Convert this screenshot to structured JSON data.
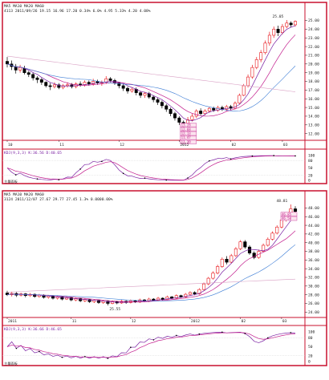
{
  "chart_data": [
    {
      "type": "candlestick",
      "stock_name": "",
      "ma_legend": "MA5 MA10 MA20 MA60",
      "info_line": "4113 2011/09/26 19.15 16.96 17.20 0.34% 6.0% 4.95 5.33% 4.20 4.08%",
      "x_ticks": [
        "10",
        "11",
        "12",
        "2012",
        "02",
        "03"
      ],
      "y_ticks": [
        "25.00",
        "24.00",
        "23.00",
        "22.00",
        "21.00",
        "20.00",
        "19.00",
        "18.00",
        "17.00",
        "16.00",
        "15.00",
        "14.00",
        "13.00",
        "12.00"
      ],
      "ylim": [
        11.6,
        25.6
      ],
      "high_label": "25.05",
      "low_label": "12.29",
      "price_box_labels": [
        "13.28",
        "12.68",
        "12.13",
        "11.47",
        "11.30"
      ],
      "candles": [
        {
          "o": 20.3,
          "c": 20.0,
          "h": 20.8,
          "l": 19.6
        },
        {
          "o": 20.0,
          "c": 19.7,
          "h": 20.4,
          "l": 19.3
        },
        {
          "o": 19.7,
          "c": 19.3,
          "h": 20.0,
          "l": 18.9
        },
        {
          "o": 19.3,
          "c": 19.6,
          "h": 19.9,
          "l": 19.0
        },
        {
          "o": 19.5,
          "c": 19.0,
          "h": 19.8,
          "l": 18.8
        },
        {
          "o": 19.0,
          "c": 18.8,
          "h": 19.2,
          "l": 18.5
        },
        {
          "o": 18.8,
          "c": 18.4,
          "h": 19.0,
          "l": 18.1
        },
        {
          "o": 18.4,
          "c": 18.2,
          "h": 18.6,
          "l": 17.8
        },
        {
          "o": 18.2,
          "c": 17.9,
          "h": 18.4,
          "l": 17.6
        },
        {
          "o": 17.9,
          "c": 17.5,
          "h": 18.0,
          "l": 17.3
        },
        {
          "o": 17.5,
          "c": 17.4,
          "h": 17.8,
          "l": 17.0
        },
        {
          "o": 17.4,
          "c": 17.6,
          "h": 17.9,
          "l": 17.2
        },
        {
          "o": 17.6,
          "c": 17.3,
          "h": 17.8,
          "l": 17.1
        },
        {
          "o": 17.3,
          "c": 17.5,
          "h": 17.7,
          "l": 17.1
        },
        {
          "o": 17.5,
          "c": 17.6,
          "h": 17.9,
          "l": 17.3
        },
        {
          "o": 17.6,
          "c": 17.4,
          "h": 17.8,
          "l": 17.2
        },
        {
          "o": 17.4,
          "c": 17.7,
          "h": 17.9,
          "l": 17.2
        },
        {
          "o": 17.7,
          "c": 17.6,
          "h": 18.0,
          "l": 17.4
        },
        {
          "o": 17.6,
          "c": 17.9,
          "h": 18.1,
          "l": 17.4
        },
        {
          "o": 17.9,
          "c": 17.7,
          "h": 18.1,
          "l": 17.5
        },
        {
          "o": 17.7,
          "c": 18.0,
          "h": 18.3,
          "l": 17.5
        },
        {
          "o": 18.0,
          "c": 17.8,
          "h": 18.2,
          "l": 17.6
        },
        {
          "o": 17.8,
          "c": 17.9,
          "h": 18.1,
          "l": 17.5
        },
        {
          "o": 17.9,
          "c": 18.3,
          "h": 18.6,
          "l": 17.7
        },
        {
          "o": 18.3,
          "c": 18.1,
          "h": 18.5,
          "l": 17.9
        },
        {
          "o": 18.1,
          "c": 17.8,
          "h": 18.3,
          "l": 17.6
        },
        {
          "o": 17.8,
          "c": 17.5,
          "h": 17.9,
          "l": 17.2
        },
        {
          "o": 17.5,
          "c": 17.2,
          "h": 17.7,
          "l": 16.9
        },
        {
          "o": 17.2,
          "c": 16.9,
          "h": 17.4,
          "l": 16.6
        },
        {
          "o": 16.9,
          "c": 17.1,
          "h": 17.3,
          "l": 16.7
        },
        {
          "o": 17.1,
          "c": 16.7,
          "h": 17.3,
          "l": 16.4
        },
        {
          "o": 16.7,
          "c": 16.4,
          "h": 16.9,
          "l": 16.1
        },
        {
          "o": 16.4,
          "c": 16.6,
          "h": 16.8,
          "l": 16.1
        },
        {
          "o": 16.6,
          "c": 16.2,
          "h": 16.8,
          "l": 16.0
        },
        {
          "o": 16.2,
          "c": 15.9,
          "h": 16.4,
          "l": 15.6
        },
        {
          "o": 15.9,
          "c": 15.6,
          "h": 16.1,
          "l": 15.3
        },
        {
          "o": 15.6,
          "c": 15.2,
          "h": 15.8,
          "l": 14.9
        },
        {
          "o": 15.2,
          "c": 14.8,
          "h": 15.4,
          "l": 14.5
        },
        {
          "o": 14.8,
          "c": 14.3,
          "h": 15.0,
          "l": 14.0
        },
        {
          "o": 14.3,
          "c": 13.8,
          "h": 14.5,
          "l": 13.5
        },
        {
          "o": 13.8,
          "c": 13.3,
          "h": 14.0,
          "l": 13.0
        },
        {
          "o": 13.3,
          "c": 12.7,
          "h": 13.5,
          "l": 12.29
        },
        {
          "o": 12.8,
          "c": 13.6,
          "h": 13.9,
          "l": 12.6
        },
        {
          "o": 13.6,
          "c": 14.0,
          "h": 14.3,
          "l": 13.4
        },
        {
          "o": 14.0,
          "c": 14.6,
          "h": 14.8,
          "l": 13.8
        },
        {
          "o": 14.6,
          "c": 14.3,
          "h": 14.9,
          "l": 14.1
        },
        {
          "o": 14.3,
          "c": 14.6,
          "h": 14.8,
          "l": 14.1
        },
        {
          "o": 14.6,
          "c": 14.9,
          "h": 15.1,
          "l": 14.4
        },
        {
          "o": 14.9,
          "c": 14.7,
          "h": 15.1,
          "l": 14.5
        },
        {
          "o": 14.7,
          "c": 15.0,
          "h": 15.2,
          "l": 14.5
        },
        {
          "o": 15.0,
          "c": 14.8,
          "h": 15.2,
          "l": 14.6
        },
        {
          "o": 14.8,
          "c": 15.1,
          "h": 15.3,
          "l": 14.6
        },
        {
          "o": 15.1,
          "c": 14.9,
          "h": 15.3,
          "l": 14.7
        },
        {
          "o": 14.9,
          "c": 15.5,
          "h": 15.7,
          "l": 14.8
        },
        {
          "o": 15.5,
          "c": 16.4,
          "h": 16.6,
          "l": 15.4
        },
        {
          "o": 16.4,
          "c": 17.5,
          "h": 17.7,
          "l": 16.3
        },
        {
          "o": 17.5,
          "c": 18.5,
          "h": 18.8,
          "l": 17.3
        },
        {
          "o": 18.5,
          "c": 19.6,
          "h": 19.9,
          "l": 18.3
        },
        {
          "o": 19.6,
          "c": 20.5,
          "h": 20.8,
          "l": 19.4
        },
        {
          "o": 20.5,
          "c": 21.3,
          "h": 21.6,
          "l": 20.2
        },
        {
          "o": 21.3,
          "c": 22.4,
          "h": 22.7,
          "l": 21.1
        },
        {
          "o": 22.4,
          "c": 23.3,
          "h": 23.7,
          "l": 22.1
        },
        {
          "o": 23.3,
          "c": 24.0,
          "h": 24.3,
          "l": 23.0
        },
        {
          "o": 24.0,
          "c": 23.6,
          "h": 24.4,
          "l": 23.2
        },
        {
          "o": 23.6,
          "c": 24.3,
          "h": 24.6,
          "l": 23.4
        },
        {
          "o": 24.3,
          "c": 24.7,
          "h": 25.05,
          "l": 24.1
        },
        {
          "o": 24.7,
          "c": 24.5,
          "h": 24.9,
          "l": 24.2
        },
        {
          "o": 24.5,
          "c": 24.9,
          "h": 25.0,
          "l": 24.3
        }
      ],
      "ma_slow_start": 20.9,
      "ma_slow_end": 16.8,
      "indicator_label": "KDJ(9,3,3) K:36.56 D:40.65",
      "indicator_ticks": [
        "100",
        "80",
        "50",
        "20",
        "0"
      ],
      "indicator_bottom_label": "主量面板"
    },
    {
      "type": "candlestick",
      "stock_name": "",
      "ma_legend": "MA5 MA10 MA20 MA60",
      "info_line": "3124 2011/12/07 27.67 29.77 27.45 1.3% 0.0000.00%",
      "x_ticks": [
        "2011",
        "11",
        "12",
        "2012",
        "02",
        "03"
      ],
      "y_ticks": [
        "48.00",
        "46.00",
        "44.00",
        "42.00",
        "40.00",
        "38.00",
        "36.00",
        "34.00",
        "32.00",
        "30.00",
        "28.00",
        "26.00",
        "24.00"
      ],
      "ylim": [
        23.5,
        49.0
      ],
      "high_label": "48.81",
      "low_label": "25.55",
      "price_box_labels": [
        "46.85",
        "46.50"
      ],
      "candles": [
        {
          "o": 28.4,
          "c": 28.0,
          "h": 28.9,
          "l": 27.7
        },
        {
          "o": 28.0,
          "c": 28.3,
          "h": 28.7,
          "l": 27.6
        },
        {
          "o": 28.3,
          "c": 27.9,
          "h": 28.6,
          "l": 27.5
        },
        {
          "o": 27.9,
          "c": 28.2,
          "h": 28.5,
          "l": 27.6
        },
        {
          "o": 28.2,
          "c": 27.8,
          "h": 28.4,
          "l": 27.4
        },
        {
          "o": 27.8,
          "c": 28.1,
          "h": 28.4,
          "l": 27.5
        },
        {
          "o": 28.1,
          "c": 27.6,
          "h": 28.3,
          "l": 27.3
        },
        {
          "o": 27.6,
          "c": 27.9,
          "h": 28.2,
          "l": 27.3
        },
        {
          "o": 27.9,
          "c": 27.4,
          "h": 28.1,
          "l": 27.1
        },
        {
          "o": 27.4,
          "c": 27.7,
          "h": 27.9,
          "l": 27.1
        },
        {
          "o": 27.7,
          "c": 27.2,
          "h": 27.9,
          "l": 26.9
        },
        {
          "o": 27.2,
          "c": 27.5,
          "h": 27.8,
          "l": 26.9
        },
        {
          "o": 27.5,
          "c": 27.0,
          "h": 27.7,
          "l": 26.7
        },
        {
          "o": 27.0,
          "c": 27.3,
          "h": 27.6,
          "l": 26.8
        },
        {
          "o": 27.3,
          "c": 26.8,
          "h": 27.5,
          "l": 26.5
        },
        {
          "o": 26.8,
          "c": 27.1,
          "h": 27.4,
          "l": 26.5
        },
        {
          "o": 27.1,
          "c": 26.6,
          "h": 27.3,
          "l": 26.3
        },
        {
          "o": 26.6,
          "c": 26.9,
          "h": 27.1,
          "l": 26.3
        },
        {
          "o": 26.9,
          "c": 26.4,
          "h": 27.1,
          "l": 26.1
        },
        {
          "o": 26.4,
          "c": 26.7,
          "h": 26.9,
          "l": 26.1
        },
        {
          "o": 26.7,
          "c": 26.2,
          "h": 26.9,
          "l": 25.9
        },
        {
          "o": 26.2,
          "c": 26.5,
          "h": 26.8,
          "l": 25.9
        },
        {
          "o": 26.5,
          "c": 26.0,
          "h": 26.7,
          "l": 25.55
        },
        {
          "o": 26.0,
          "c": 26.4,
          "h": 26.7,
          "l": 25.8
        },
        {
          "o": 26.4,
          "c": 26.1,
          "h": 26.6,
          "l": 25.8
        },
        {
          "o": 26.1,
          "c": 26.5,
          "h": 26.8,
          "l": 25.9
        },
        {
          "o": 26.5,
          "c": 26.2,
          "h": 26.7,
          "l": 25.9
        },
        {
          "o": 26.2,
          "c": 26.6,
          "h": 26.9,
          "l": 26.0
        },
        {
          "o": 26.6,
          "c": 26.3,
          "h": 26.8,
          "l": 26.1
        },
        {
          "o": 26.3,
          "c": 26.8,
          "h": 27.1,
          "l": 26.1
        },
        {
          "o": 26.8,
          "c": 26.5,
          "h": 27.0,
          "l": 26.3
        },
        {
          "o": 26.5,
          "c": 27.0,
          "h": 27.3,
          "l": 26.3
        },
        {
          "o": 27.0,
          "c": 26.7,
          "h": 27.2,
          "l": 26.5
        },
        {
          "o": 26.7,
          "c": 27.2,
          "h": 27.5,
          "l": 26.5
        },
        {
          "o": 27.2,
          "c": 26.9,
          "h": 27.4,
          "l": 26.7
        },
        {
          "o": 26.9,
          "c": 27.5,
          "h": 27.8,
          "l": 26.7
        },
        {
          "o": 27.5,
          "c": 27.2,
          "h": 27.7,
          "l": 27.0
        },
        {
          "o": 27.2,
          "c": 27.8,
          "h": 28.1,
          "l": 27.0
        },
        {
          "o": 27.8,
          "c": 27.5,
          "h": 28.0,
          "l": 27.3
        },
        {
          "o": 27.5,
          "c": 28.1,
          "h": 28.4,
          "l": 27.3
        },
        {
          "o": 28.1,
          "c": 28.5,
          "h": 28.8,
          "l": 27.9
        },
        {
          "o": 28.5,
          "c": 28.2,
          "h": 28.8,
          "l": 27.9
        },
        {
          "o": 28.2,
          "c": 29.2,
          "h": 29.5,
          "l": 28.0
        },
        {
          "o": 29.2,
          "c": 30.5,
          "h": 30.8,
          "l": 29.0
        },
        {
          "o": 30.5,
          "c": 31.8,
          "h": 32.1,
          "l": 30.2
        },
        {
          "o": 31.8,
          "c": 33.0,
          "h": 33.4,
          "l": 31.5
        },
        {
          "o": 33.0,
          "c": 34.5,
          "h": 34.9,
          "l": 32.7
        },
        {
          "o": 34.5,
          "c": 36.2,
          "h": 36.6,
          "l": 34.2
        },
        {
          "o": 36.2,
          "c": 35.5,
          "h": 36.9,
          "l": 35.0
        },
        {
          "o": 35.5,
          "c": 37.0,
          "h": 37.4,
          "l": 35.2
        },
        {
          "o": 37.0,
          "c": 38.6,
          "h": 39.0,
          "l": 36.7
        },
        {
          "o": 38.6,
          "c": 40.2,
          "h": 40.6,
          "l": 38.3
        },
        {
          "o": 40.2,
          "c": 39.0,
          "h": 40.6,
          "l": 38.6
        },
        {
          "o": 39.0,
          "c": 37.6,
          "h": 39.4,
          "l": 37.2
        },
        {
          "o": 37.6,
          "c": 36.6,
          "h": 38.0,
          "l": 36.2
        },
        {
          "o": 36.6,
          "c": 38.0,
          "h": 38.4,
          "l": 36.3
        },
        {
          "o": 38.0,
          "c": 39.4,
          "h": 39.8,
          "l": 37.8
        },
        {
          "o": 39.4,
          "c": 40.8,
          "h": 41.2,
          "l": 39.1
        },
        {
          "o": 40.8,
          "c": 42.2,
          "h": 42.6,
          "l": 40.5
        },
        {
          "o": 42.2,
          "c": 43.6,
          "h": 44.0,
          "l": 41.9
        },
        {
          "o": 43.6,
          "c": 45.2,
          "h": 45.6,
          "l": 43.3
        },
        {
          "o": 45.2,
          "c": 46.6,
          "h": 47.0,
          "l": 44.9
        },
        {
          "o": 46.6,
          "c": 47.8,
          "h": 48.81,
          "l": 46.3
        },
        {
          "o": 47.8,
          "c": 47.2,
          "h": 48.4,
          "l": 46.9
        }
      ],
      "ma_slow_start": 28.6,
      "ma_slow_end": 31.6,
      "indicator_label": "KDJ(9,3,3) K:36.66 D:46.65",
      "indicator_ticks": [
        "100",
        "80",
        "50",
        "20",
        "0"
      ],
      "indicator_bottom_label": "主量面板"
    }
  ],
  "colors": {
    "frame": "#c8102e",
    "up": "#e8161b",
    "down": "#000000",
    "ma_short": "#7a1fa2",
    "ma_long": "#c21b8c",
    "ma_slow": "#d9a0c4",
    "k_line": "#7a1fa2",
    "d_line": "#c21b8c",
    "text": "#222222"
  }
}
